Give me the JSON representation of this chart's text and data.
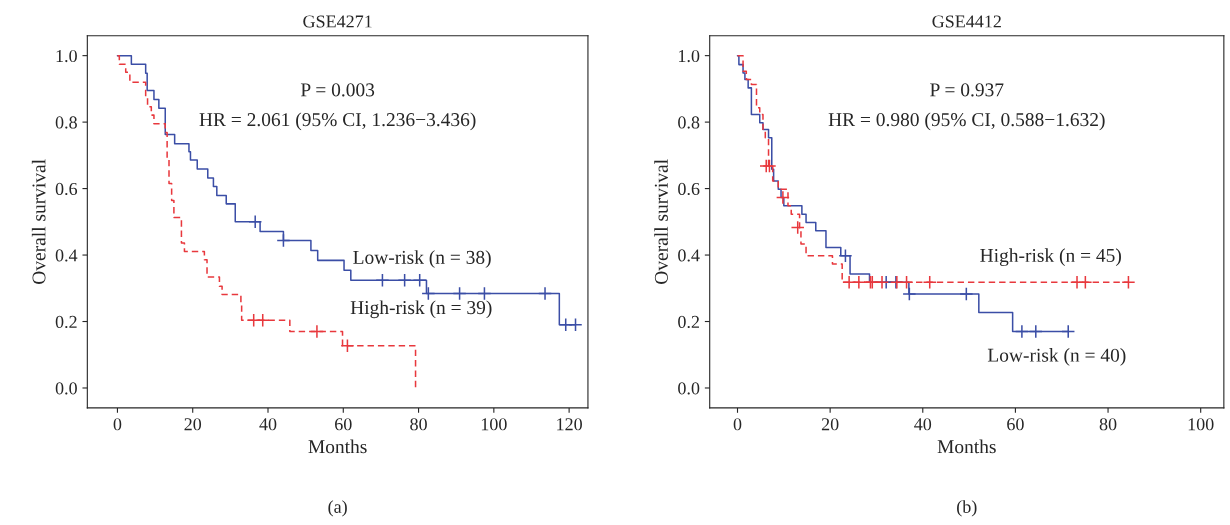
{
  "chart_data": [
    {
      "type": "step",
      "title": "GSE4271",
      "xlabel": "Months",
      "ylabel": "Overall survival",
      "xlim": [
        -8,
        125
      ],
      "ylim": [
        -0.06,
        1.06
      ],
      "xticks": [
        0,
        20,
        40,
        60,
        80,
        100,
        120
      ],
      "yticks": [
        {
          "value": 0,
          "label": "0.0"
        },
        {
          "value": 0.2,
          "label": "0.2"
        },
        {
          "value": 0.4,
          "label": "0.4"
        },
        {
          "value": 0.6,
          "label": "0.6"
        },
        {
          "value": 0.8,
          "label": "0.8"
        },
        {
          "value": 1,
          "label": "1.0"
        }
      ],
      "grid": false,
      "series": [
        {
          "type": "step",
          "color": "#3b4ea6",
          "line_style": "solid",
          "x": [
            0,
            3.7,
            7.5,
            7.9,
            9.7,
            11.0,
            12.7,
            15.2,
            19.0,
            19.4,
            21.2,
            24.0,
            25.5,
            26.4,
            28.9,
            31.3,
            37.9,
            44.1,
            51.4,
            53.2,
            60.2,
            62.0,
            82.1,
            117.4,
            121.7
          ],
          "values": [
            1.0,
            0.974,
            0.947,
            0.895,
            0.868,
            0.842,
            0.763,
            0.735,
            0.711,
            0.686,
            0.659,
            0.632,
            0.606,
            0.579,
            0.554,
            0.5,
            0.471,
            0.444,
            0.414,
            0.384,
            0.354,
            0.324,
            0.284,
            0.19,
            0.19
          ]
        },
        {
          "type": "step",
          "color": "#e8383d",
          "line_style": "dashed",
          "x": [
            0,
            0.5,
            2.2,
            3.3,
            7.5,
            8.0,
            9.0,
            9.7,
            12.7,
            13.2,
            13.7,
            14.4,
            15.0,
            17.0,
            17.8,
            23.1,
            23.8,
            27.1,
            27.8,
            32.8,
            33.0,
            45.8,
            59.8,
            79.2
          ],
          "values": [
            1.0,
            0.974,
            0.95,
            0.92,
            0.872,
            0.846,
            0.821,
            0.795,
            0.769,
            0.692,
            0.615,
            0.564,
            0.513,
            0.436,
            0.411,
            0.386,
            0.334,
            0.306,
            0.281,
            0.251,
            0.204,
            0.17,
            0.127,
            0.0
          ]
        },
        {
          "type": "scatter",
          "color": "#3b4ea6",
          "marker": "cross",
          "x": [
            36.6,
            44.1,
            70.4,
            76.3,
            80.3,
            82.6,
            90.9,
            97.5,
            113.6,
            119.1,
            121.7
          ],
          "values": [
            0.5,
            0.444,
            0.324,
            0.324,
            0.324,
            0.284,
            0.284,
            0.284,
            0.284,
            0.19,
            0.19
          ]
        },
        {
          "type": "scatter",
          "color": "#e8383d",
          "marker": "cross",
          "x": [
            36.2,
            38.6,
            53.0,
            61.1
          ],
          "values": [
            0.204,
            0.204,
            0.17,
            0.127
          ]
        }
      ],
      "annotations": [
        "P = 0.003",
        "HR = 2.061 (95% CI, 1.236−3.436)",
        "(a)",
        "Low-risk (n = 38)",
        "High-risk (n = 39)"
      ]
    },
    {
      "type": "step",
      "title": "GSE4412",
      "xlabel": "Months",
      "ylabel": "Overall survival",
      "xlim": [
        -6,
        105
      ],
      "ylim": [
        -0.06,
        1.06
      ],
      "xticks": [
        0,
        20,
        40,
        60,
        80,
        100
      ],
      "yticks": [
        {
          "value": 0,
          "label": "0.0"
        },
        {
          "value": 0.2,
          "label": "0.2"
        },
        {
          "value": 0.4,
          "label": "0.4"
        },
        {
          "value": 0.6,
          "label": "0.6"
        },
        {
          "value": 0.8,
          "label": "0.8"
        },
        {
          "value": 1,
          "label": "1.0"
        }
      ],
      "grid": false,
      "series": [
        {
          "type": "step",
          "color": "#3b4ea6",
          "line_style": "solid",
          "x": [
            0,
            0.3,
            1.2,
            1.6,
            2.3,
            3.0,
            4.8,
            5.5,
            6.7,
            7.4,
            7.8,
            8.8,
            9.4,
            10.0,
            13.9,
            14.8,
            16.9,
            19.1,
            22.3,
            24.3,
            28.5,
            37.0,
            52.1,
            59.4,
            71.4
          ],
          "values": [
            1.0,
            0.973,
            0.948,
            0.928,
            0.903,
            0.823,
            0.798,
            0.778,
            0.753,
            0.658,
            0.623,
            0.598,
            0.573,
            0.548,
            0.523,
            0.498,
            0.473,
            0.423,
            0.398,
            0.343,
            0.318,
            0.283,
            0.227,
            0.17,
            0.17
          ]
        },
        {
          "type": "step",
          "color": "#e8383d",
          "line_style": "dashed",
          "x": [
            0,
            1.2,
            1.9,
            3.0,
            4.1,
            4.8,
            5.5,
            6.0,
            6.7,
            7.6,
            8.8,
            10.9,
            11.6,
            13.4,
            13.7,
            14.8,
            20.5,
            22.6,
            84.4
          ],
          "values": [
            1.0,
            0.953,
            0.928,
            0.913,
            0.843,
            0.823,
            0.773,
            0.753,
            0.668,
            0.623,
            0.598,
            0.548,
            0.523,
            0.473,
            0.433,
            0.398,
            0.373,
            0.318,
            0.318
          ]
        },
        {
          "type": "scatter",
          "color": "#3b4ea6",
          "marker": "cross",
          "x": [
            23.3,
            32.1,
            34.2,
            37.1,
            49.4,
            61.4,
            64.4,
            71.4
          ],
          "values": [
            0.398,
            0.318,
            0.318,
            0.283,
            0.283,
            0.17,
            0.17,
            0.17
          ]
        },
        {
          "type": "scatter",
          "color": "#e8383d",
          "marker": "cross",
          "x": [
            6.2,
            6.9,
            9.8,
            13.0,
            24.1,
            26.2,
            28.7,
            29.1,
            31.2,
            34.4,
            36.5,
            41.5,
            73.3,
            75.1,
            84.4
          ],
          "values": [
            0.668,
            0.668,
            0.573,
            0.483,
            0.318,
            0.318,
            0.318,
            0.318,
            0.318,
            0.318,
            0.318,
            0.318,
            0.318,
            0.318,
            0.318
          ]
        }
      ],
      "annotations": [
        "P = 0.937",
        "HR = 0.980 (95% CI, 0.588−1.632)",
        "(b)",
        "High-risk (n = 45)",
        "Low-risk (n = 40)"
      ]
    }
  ]
}
